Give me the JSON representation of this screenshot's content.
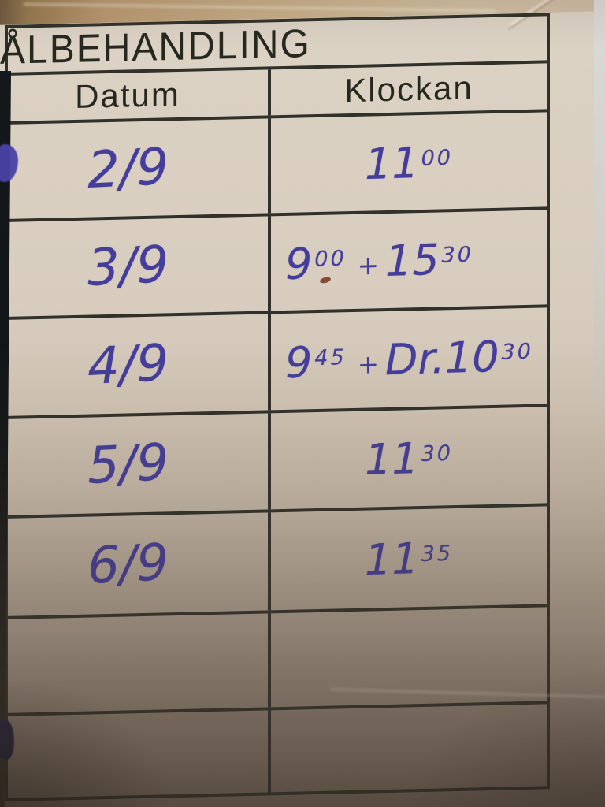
{
  "title": "ÅLBEHANDLING",
  "table": {
    "columns": [
      "Datum",
      "Klockan"
    ],
    "rows": [
      {
        "datum": "2/9",
        "klockan": [
          {
            "t": "11",
            "sup": "00"
          }
        ]
      },
      {
        "datum": "3/9",
        "klockan": [
          {
            "t": "9",
            "sup": "00"
          },
          {
            "plus": "+"
          },
          {
            "t": "15",
            "sup": "30"
          }
        ]
      },
      {
        "datum": "4/9",
        "klockan": [
          {
            "t": "9",
            "sup": "45"
          },
          {
            "plus": "+"
          },
          {
            "t": "Dr.10",
            "sup": "30"
          }
        ]
      },
      {
        "datum": "5/9",
        "klockan": [
          {
            "t": "11",
            "sup": "30"
          }
        ]
      },
      {
        "datum": "6/9",
        "klockan": [
          {
            "t": "11",
            "sup": "35"
          }
        ]
      },
      {
        "datum": "",
        "klockan": []
      },
      {
        "datum": "",
        "klockan": []
      }
    ]
  },
  "colors": {
    "ink": "#443d9c",
    "printed_text": "#26281f",
    "table_line": "#30312a",
    "paper": "#d9cfc2",
    "background_tan": "#c3a987",
    "red_mark": "#7e3b24"
  }
}
